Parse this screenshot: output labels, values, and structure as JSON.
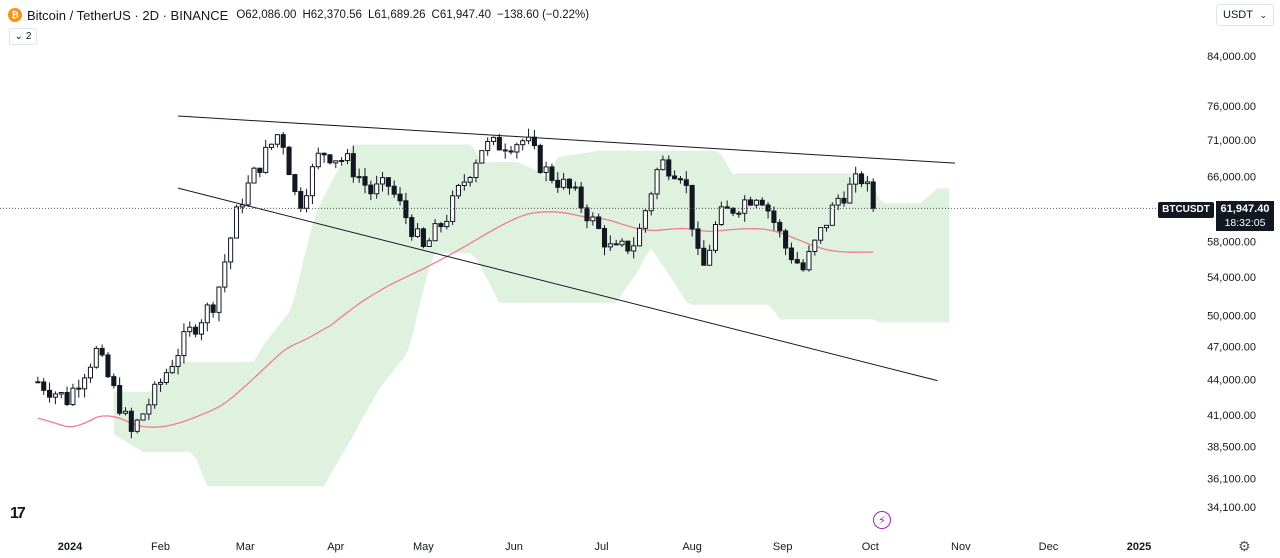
{
  "header": {
    "symbol_title": "Bitcoin / TetherUS · 2D · BINANCE",
    "open_label": "O",
    "open_value": "62,086.00",
    "high_label": "H",
    "high_value": "62,370.56",
    "low_label": "L",
    "low_value": "61,689.26",
    "close_label": "C",
    "close_value": "61,947.40",
    "change": "−138.60 (−0.22%)",
    "indicator_count": "2",
    "currency": "USDT"
  },
  "price_scale": {
    "last_price": "61,947.40",
    "countdown": "18:32:05",
    "symbol_tag": "BTCUSDT"
  },
  "icons": {
    "coin": "bitcoin-icon",
    "logo": "tradingview-logo-icon",
    "flash": "flash-icon",
    "settings": "gear-icon"
  },
  "colors": {
    "up": "#ffffff",
    "down": "#131722",
    "cloud_bull": "#d9efd9",
    "cloud_bear": "#fbe0e0",
    "ma": "#ef7d96",
    "trendline": "#131722"
  },
  "chart_data": {
    "type": "candlestick",
    "title": "Bitcoin / TetherUS · 2D · BINANCE",
    "scale": "log",
    "y_ticks": [
      84000,
      76000,
      71000,
      66000,
      62000,
      58000,
      54000,
      50000,
      47000,
      44000,
      41000,
      38500,
      36100,
      34100
    ],
    "y_tick_labels": [
      "84,000.00",
      "76,000.00",
      "71,000.00",
      "66,000.00",
      "",
      "58,000.00",
      "54,000.00",
      "50,000.00",
      "47,000.00",
      "44,000.00",
      "41,000.00",
      "38,500.00",
      "36,100.00",
      "34,100.00"
    ],
    "x_labels": [
      "2024",
      "Feb",
      "Mar",
      "Apr",
      "May",
      "Jun",
      "Jul",
      "Aug",
      "Sep",
      "Oct",
      "Nov",
      "Dec",
      "2025"
    ],
    "x_label_dates": [
      "2024-01-01",
      "2024-02-01",
      "2024-03-01",
      "2024-04-01",
      "2024-05-01",
      "2024-06-01",
      "2024-07-01",
      "2024-08-01",
      "2024-09-01",
      "2024-10-01",
      "2024-11-01",
      "2024-12-01",
      "2025-01-01"
    ],
    "last_price": 61947.4,
    "closes": [
      {
        "date": "2023-12-21",
        "close": 43800
      },
      {
        "date": "2023-12-31",
        "close": 42300
      },
      {
        "date": "2024-01-10",
        "close": 46500
      },
      {
        "date": "2024-01-16",
        "close": 43000
      },
      {
        "date": "2024-01-22",
        "close": 39500
      },
      {
        "date": "2024-01-30",
        "close": 42800
      },
      {
        "date": "2024-02-10",
        "close": 48000
      },
      {
        "date": "2024-02-20",
        "close": 51700
      },
      {
        "date": "2024-02-28",
        "close": 62500
      },
      {
        "date": "2024-03-05",
        "close": 67000
      },
      {
        "date": "2024-03-13",
        "close": 72500
      },
      {
        "date": "2024-03-19",
        "close": 62000
      },
      {
        "date": "2024-03-27",
        "close": 69500
      },
      {
        "date": "2024-04-05",
        "close": 68000
      },
      {
        "date": "2024-04-13",
        "close": 64000
      },
      {
        "date": "2024-04-19",
        "close": 64900
      },
      {
        "date": "2024-05-01",
        "close": 57000
      },
      {
        "date": "2024-05-09",
        "close": 61000
      },
      {
        "date": "2024-05-21",
        "close": 70000
      },
      {
        "date": "2024-06-05",
        "close": 71000
      },
      {
        "date": "2024-06-11",
        "close": 67000
      },
      {
        "date": "2024-06-21",
        "close": 64000
      },
      {
        "date": "2024-07-05",
        "close": 56600
      },
      {
        "date": "2024-07-13",
        "close": 58000
      },
      {
        "date": "2024-07-21",
        "close": 68000
      },
      {
        "date": "2024-07-29",
        "close": 66500
      },
      {
        "date": "2024-08-04",
        "close": 54000
      },
      {
        "date": "2024-08-10",
        "close": 60800
      },
      {
        "date": "2024-08-24",
        "close": 64100
      },
      {
        "date": "2024-09-02",
        "close": 57300
      },
      {
        "date": "2024-09-08",
        "close": 54800
      },
      {
        "date": "2024-09-20",
        "close": 63200
      },
      {
        "date": "2024-09-28",
        "close": 65800
      },
      {
        "date": "2024-10-03",
        "close": 61947
      }
    ]
  }
}
